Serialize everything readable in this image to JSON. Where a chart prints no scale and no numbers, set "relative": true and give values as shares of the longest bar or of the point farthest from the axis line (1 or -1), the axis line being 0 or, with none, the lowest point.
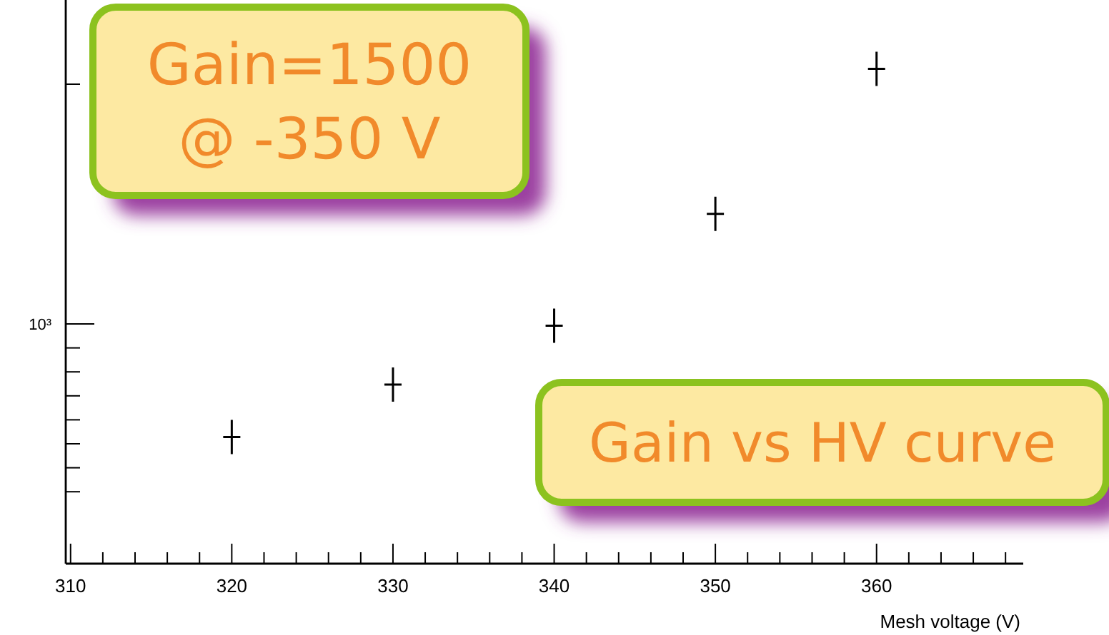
{
  "chart_data": {
    "type": "scatter",
    "xlabel": "Mesh voltage (V)",
    "relative": true,
    "x": [
      320,
      330,
      340,
      350,
      360
    ],
    "values": [
      0.256,
      0.362,
      0.481,
      0.707,
      1
    ],
    "color": "#000000",
    "marker": "cross",
    "xlim": [
      309.7,
      369.1
    ],
    "xticks": [
      310,
      320,
      330,
      340,
      350,
      360
    ],
    "annotations": [
      "Gain=1500\n@ -350 V",
      "Gain vs HV curve",
      "10³"
    ]
  }
}
